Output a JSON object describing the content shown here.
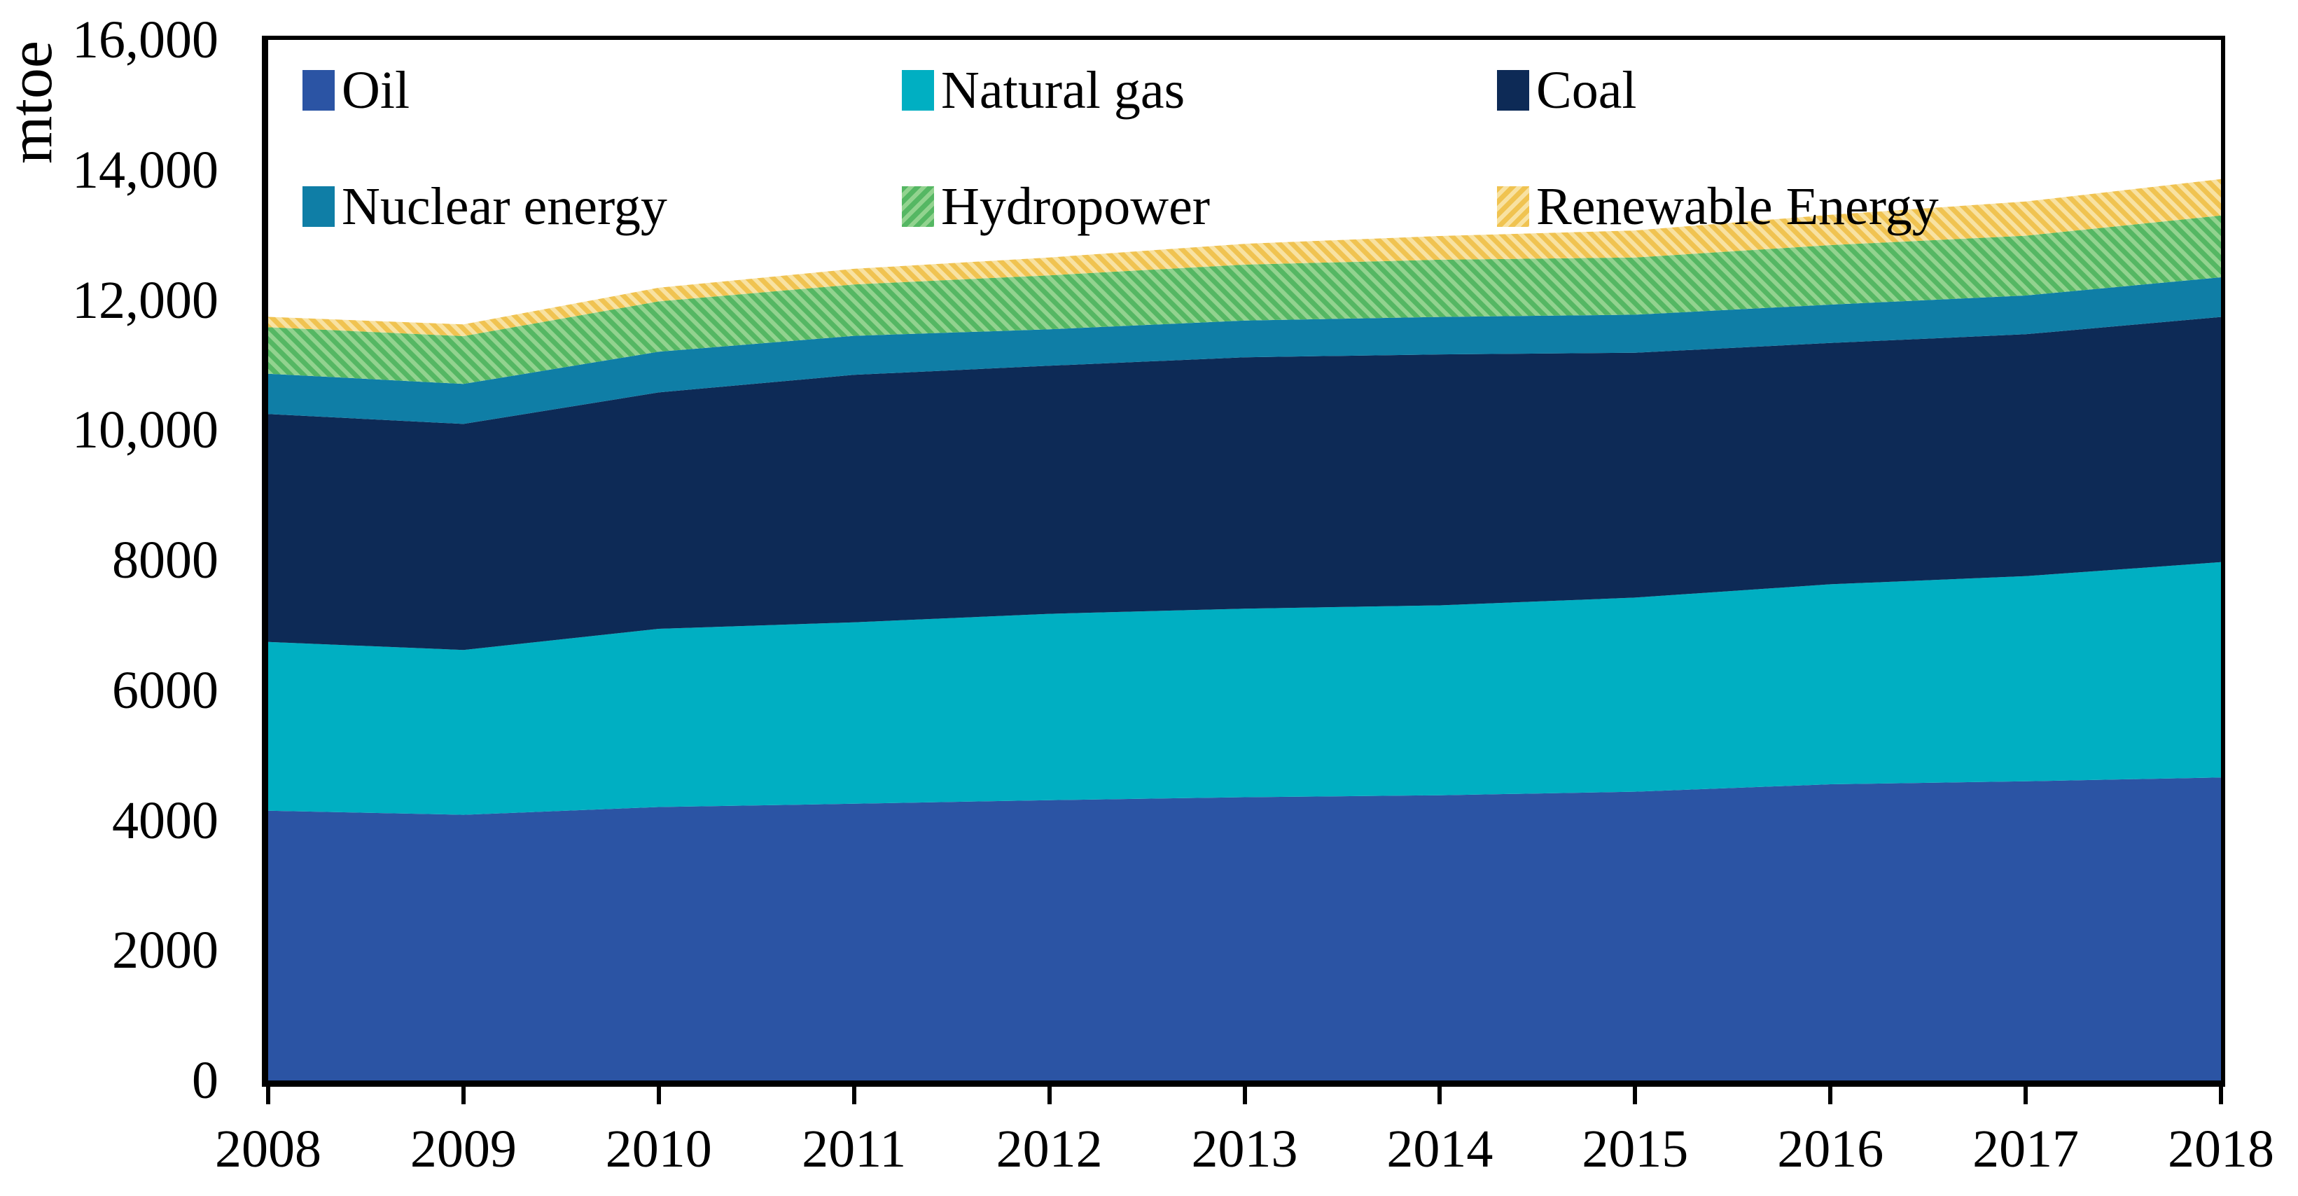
{
  "y_axis": {
    "label": "mtoe",
    "ticks": [
      {
        "label": "16,000",
        "value": 16000
      },
      {
        "label": "14,000",
        "value": 14000
      },
      {
        "label": "12,000",
        "value": 12000
      },
      {
        "label": "10,000",
        "value": 10000
      },
      {
        "label": "8000",
        "value": 8000
      },
      {
        "label": "6000",
        "value": 6000
      },
      {
        "label": "4000",
        "value": 4000
      },
      {
        "label": "2000",
        "value": 2000
      },
      {
        "label": "0",
        "value": 0
      }
    ]
  },
  "x_axis": {
    "ticks": [
      "2008",
      "2009",
      "2010",
      "2011",
      "2012",
      "2013",
      "2014",
      "2015",
      "2016",
      "2017",
      "2018"
    ]
  },
  "legend": {
    "items": [
      {
        "label": "Oil",
        "series": "Oil"
      },
      {
        "label": "Natural gas",
        "series": "Natural gas"
      },
      {
        "label": "Coal",
        "series": "Coal"
      },
      {
        "label": "Nuclear energy",
        "series": "Nuclear energy"
      },
      {
        "label": "Hydropower",
        "series": "Hydropower"
      },
      {
        "label": "Renewable Energy",
        "series": "Renewable Energy"
      }
    ]
  },
  "colors": {
    "axis": "#000000",
    "background": "#ffffff"
  },
  "chart_data": {
    "type": "area",
    "stacked": true,
    "title": "",
    "xlabel": "",
    "ylabel": "mtoe",
    "unit": "mtoe",
    "x": [
      2008,
      2009,
      2010,
      2011,
      2012,
      2013,
      2014,
      2015,
      2016,
      2017,
      2018
    ],
    "ylim": [
      0,
      16000
    ],
    "ytick_interval": 2000,
    "grid": false,
    "legend_position": "top-inside-two-rows",
    "series": [
      {
        "name": "Oil",
        "pattern": "solid",
        "color": "#2B54A4",
        "values": [
          4147,
          4085,
          4205,
          4255,
          4310,
          4355,
          4385,
          4440,
          4555,
          4600,
          4660
        ]
      },
      {
        "name": "Natural gas",
        "pattern": "solid",
        "color": "#00AFC2",
        "values": [
          2595,
          2535,
          2740,
          2790,
          2865,
          2900,
          2920,
          2985,
          3075,
          3155,
          3310
        ]
      },
      {
        "name": "Coal",
        "pattern": "solid",
        "color": "#0D2A56",
        "values": [
          3505,
          3475,
          3635,
          3805,
          3815,
          3865,
          3860,
          3765,
          3710,
          3720,
          3770
        ]
      },
      {
        "name": "Nuclear energy",
        "pattern": "solid",
        "color": "#0F7EA6",
        "values": [
          620,
          615,
          625,
          600,
          560,
          565,
          575,
          585,
          590,
          595,
          610
        ]
      },
      {
        "name": "Hydropower",
        "pattern": "diagonal-hatch",
        "color": "#55B763",
        "stripe": "#92D38F",
        "values": [
          715,
          735,
          775,
          790,
          830,
          860,
          880,
          880,
          915,
          920,
          950
        ]
      },
      {
        "name": "Renewable Energy",
        "pattern": "diagonal-hatch",
        "color": "#F0C351",
        "stripe": "#F8E2A2",
        "values": [
          160,
          180,
          210,
          240,
          275,
          320,
          365,
          415,
          465,
          525,
          560
        ]
      }
    ]
  }
}
